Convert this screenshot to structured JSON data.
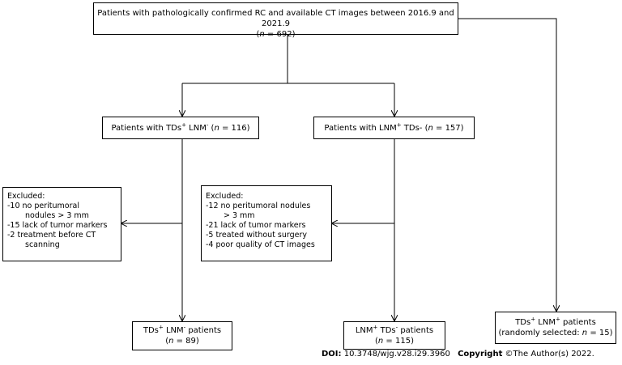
{
  "top": {
    "line1": "Patients with pathologically confirmed RC and available CT images between 2016.9 and 2021.9",
    "n_open": "(",
    "n_sym": "n",
    "n_val": " =  692)"
  },
  "left_mid": {
    "prefix": "Patients with TDs",
    "sup1": "+",
    "mid": " LNM",
    "sup2": "-",
    "n_open": " (",
    "n_sym": "n",
    "n_val": " =  116)"
  },
  "right_mid": {
    "prefix": "Patients with LNM",
    "sup1": "+",
    "mid": " TDs- (",
    "n_sym": "n",
    "n_val": " =  157)"
  },
  "excl_left": {
    "title": "Excluded:",
    "l1": "-10 no peritumoral",
    "l2": "nodules > 3 mm",
    "l3": "-15 lack of tumor markers",
    "l4": "-2   treatment before CT",
    "l5": "scanning"
  },
  "excl_right": {
    "title": "Excluded:",
    "l1": "-12 no peritumoral nodules",
    "l2": "> 3 mm",
    "l3": "-21 lack of tumor markers",
    "l4": "-5   treated without surgery",
    "l5": "-4   poor quality of CT images"
  },
  "bottom_left": {
    "a": "TDs",
    "sa": "+",
    "b": " LNM",
    "sb": "-",
    "c": " patients",
    "n_open": "(",
    "n_sym": "n",
    "n_val": " =  89)"
  },
  "bottom_mid": {
    "a": "LNM",
    "sa": "+",
    "b": " TDs",
    "sb": "-",
    "c": " patients",
    "n_open": "(",
    "n_sym": "n",
    "n_val": " = 115)"
  },
  "bottom_right": {
    "a": "TDs",
    "sa": "+",
    "b": " LNM",
    "sb": "+",
    "c": " patients",
    "l2_pre": "(randomly selected: ",
    "n_sym": "n",
    "n_val": " = 15)"
  },
  "footer": {
    "doi_label": "DOI:",
    "doi": " 10.3748/wjg.v28.i29.3960",
    "copy_label": "Copyright",
    "copy": " ©The Author(s) 2022."
  }
}
